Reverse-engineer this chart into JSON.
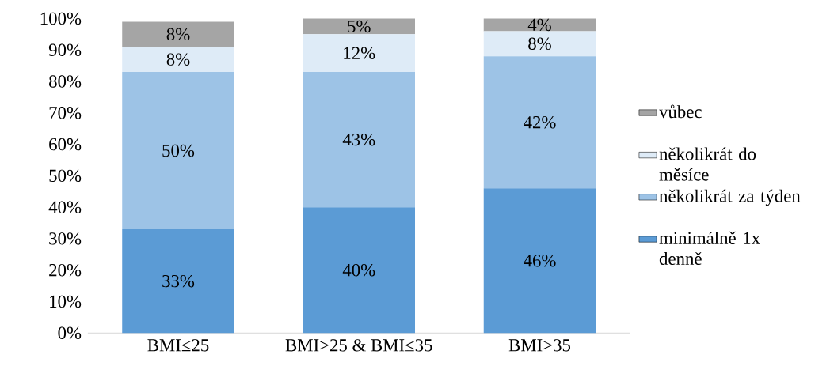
{
  "chart_data": {
    "type": "bar",
    "stacked": true,
    "categories": [
      "BMI≤25",
      "BMI>25 & BMI≤35",
      "BMI>35"
    ],
    "series": [
      {
        "name": "minimálně 1x denně",
        "color": "#5b9bd5",
        "values": [
          33,
          40,
          46
        ],
        "value_labels": [
          "33%",
          "40%",
          "46%"
        ]
      },
      {
        "name": "několikrát za týden",
        "color": "#9dc3e6",
        "values": [
          50,
          43,
          42
        ],
        "value_labels": [
          "50%",
          "43%",
          "42%"
        ]
      },
      {
        "name": "několikrát do měsíce",
        "color": "#deebf7",
        "values": [
          8,
          12,
          8
        ],
        "value_labels": [
          "8%",
          "12%",
          "8%"
        ]
      },
      {
        "name": "vůbec",
        "color": "#a5a5a5",
        "values": [
          8,
          5,
          4
        ],
        "value_labels": [
          "8%",
          "5%",
          "4%"
        ]
      }
    ],
    "ylim": [
      0,
      100
    ],
    "yticks": [
      {
        "value": 0,
        "label": "0%"
      },
      {
        "value": 10,
        "label": "10%"
      },
      {
        "value": 20,
        "label": "20%"
      },
      {
        "value": 30,
        "label": "30%"
      },
      {
        "value": 40,
        "label": "40%"
      },
      {
        "value": 50,
        "label": "50%"
      },
      {
        "value": 60,
        "label": "60%"
      },
      {
        "value": 70,
        "label": "70%"
      },
      {
        "value": 80,
        "label": "80%"
      },
      {
        "value": 90,
        "label": "90%"
      },
      {
        "value": 100,
        "label": "100%"
      }
    ],
    "legend": "right",
    "grid": false
  }
}
